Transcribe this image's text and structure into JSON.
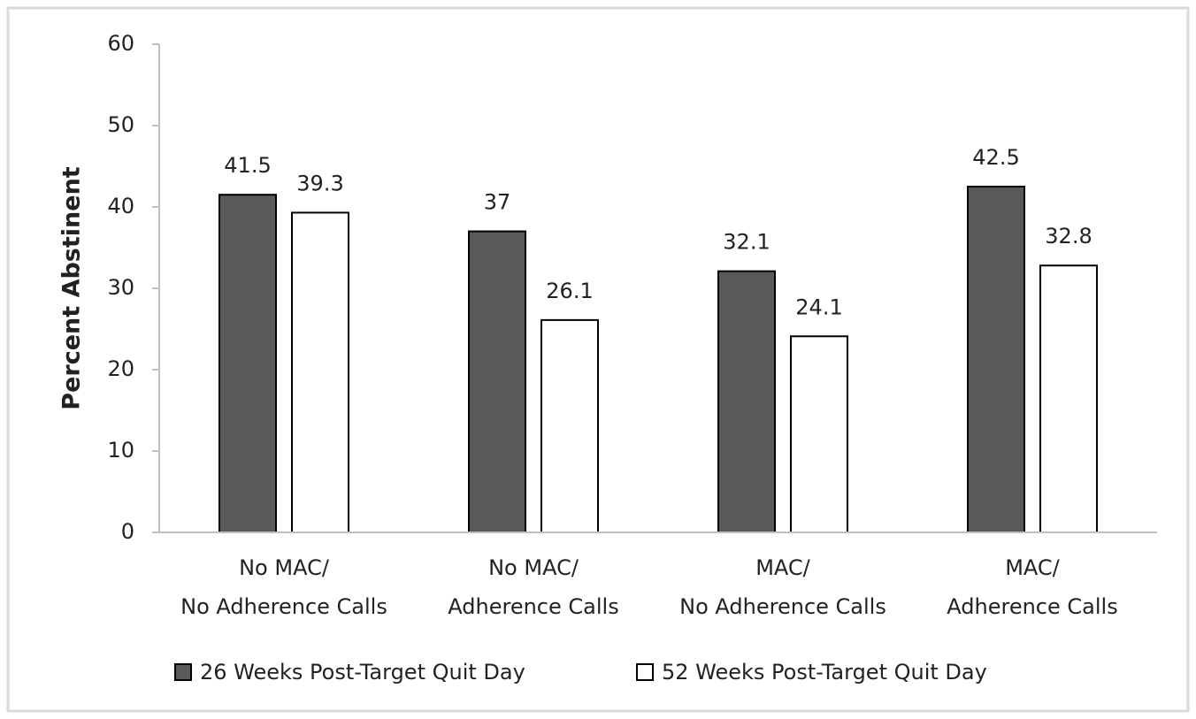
{
  "chart_data": {
    "type": "bar",
    "y_label": "Percent Abstinent",
    "categories": [
      [
        "No MAC/",
        "No Adherence Calls"
      ],
      [
        "No MAC/",
        "Adherence Calls"
      ],
      [
        "MAC/",
        "No Adherence Calls"
      ],
      [
        "MAC/",
        "Adherence Calls"
      ]
    ],
    "series": [
      {
        "name": "26 Weeks Post-Target Quit Day",
        "color": "#595959",
        "values": [
          41.5,
          37,
          32.1,
          42.5
        ]
      },
      {
        "name": "52 Weeks Post-Target Quit Day",
        "color": "#ffffff",
        "values": [
          39.3,
          26.1,
          24.1,
          32.8
        ]
      }
    ],
    "ylim": [
      0,
      60
    ],
    "yticks": [
      0,
      10,
      20,
      30,
      40,
      50,
      60
    ],
    "grid": false,
    "legend": "bottom"
  }
}
